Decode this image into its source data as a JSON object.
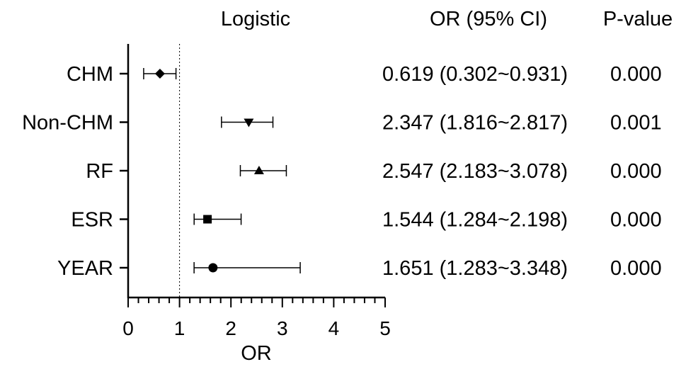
{
  "chart_data": {
    "type": "forest",
    "title": "Logistic",
    "xlabel": "OR",
    "xlim": [
      0,
      5
    ],
    "x_ticks": [
      "0",
      "1",
      "2",
      "3",
      "4",
      "5"
    ],
    "reference_line": 1,
    "columns": {
      "estimate_header": "OR (95% CI)",
      "pvalue_header": "P-value"
    },
    "rows": [
      {
        "label": "CHM",
        "or": 0.619,
        "ci_low": 0.302,
        "ci_high": 0.931,
        "ci_text": "0.619 (0.302~0.931)",
        "p_text": "0.000",
        "marker": "diamond"
      },
      {
        "label": "Non-CHM",
        "or": 2.347,
        "ci_low": 1.816,
        "ci_high": 2.817,
        "ci_text": "2.347 (1.816~2.817)",
        "p_text": "0.001",
        "marker": "triangle-down"
      },
      {
        "label": "RF",
        "or": 2.547,
        "ci_low": 2.183,
        "ci_high": 3.078,
        "ci_text": "2.547 (2.183~3.078)",
        "p_text": "0.000",
        "marker": "triangle-up"
      },
      {
        "label": "ESR",
        "or": 1.544,
        "ci_low": 1.284,
        "ci_high": 2.198,
        "ci_text": "1.544 (1.284~2.198)",
        "p_text": "0.000",
        "marker": "square"
      },
      {
        "label": "YEAR",
        "or": 1.651,
        "ci_low": 1.283,
        "ci_high": 3.348,
        "ci_text": "1.651 (1.283~3.348)",
        "p_text": "0.000",
        "marker": "circle"
      }
    ]
  }
}
